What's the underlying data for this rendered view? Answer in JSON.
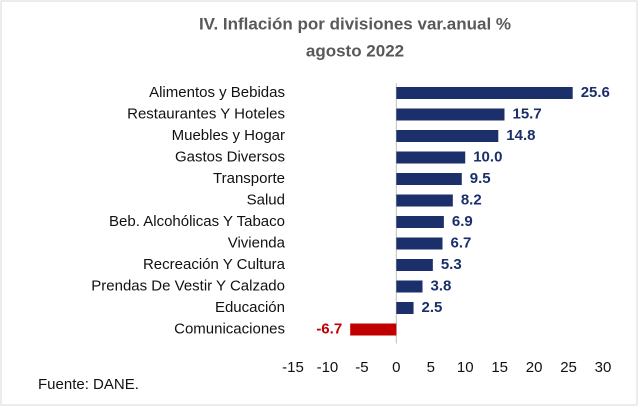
{
  "chart_data": {
    "type": "bar",
    "orientation": "horizontal",
    "title": "IV. Inflación por divisiones var.anual %",
    "subtitle": "agosto 2022",
    "source": "Fuente: DANE.",
    "categories": [
      "Alimentos y Bebidas",
      "Restaurantes Y Hoteles",
      "Muebles y Hogar",
      "Gastos Diversos",
      "Transporte",
      "Salud",
      "Beb. Alcohólicas Y Tabaco",
      "Vivienda",
      "Recreación Y Cultura",
      "Prendas De Vestir Y Calzado",
      "Educación",
      "Comunicaciones"
    ],
    "values": [
      25.6,
      15.7,
      14.8,
      10,
      9.5,
      8.2,
      6.9,
      6.7,
      5.3,
      3.8,
      2.5,
      -6.7
    ],
    "value_labels": [
      "25.6",
      "15.7",
      "14.8",
      "10.0",
      "9.5",
      "8.2",
      "6.9",
      "6.7",
      "5.3",
      "3.8",
      "2.5",
      "-6.7"
    ],
    "color": "#1b2f6b",
    "negative_color": "#c00000",
    "xlim": [
      -15,
      30
    ],
    "xticks": [
      -15,
      -10,
      -5,
      0,
      5,
      10,
      15,
      20,
      25,
      30
    ]
  }
}
